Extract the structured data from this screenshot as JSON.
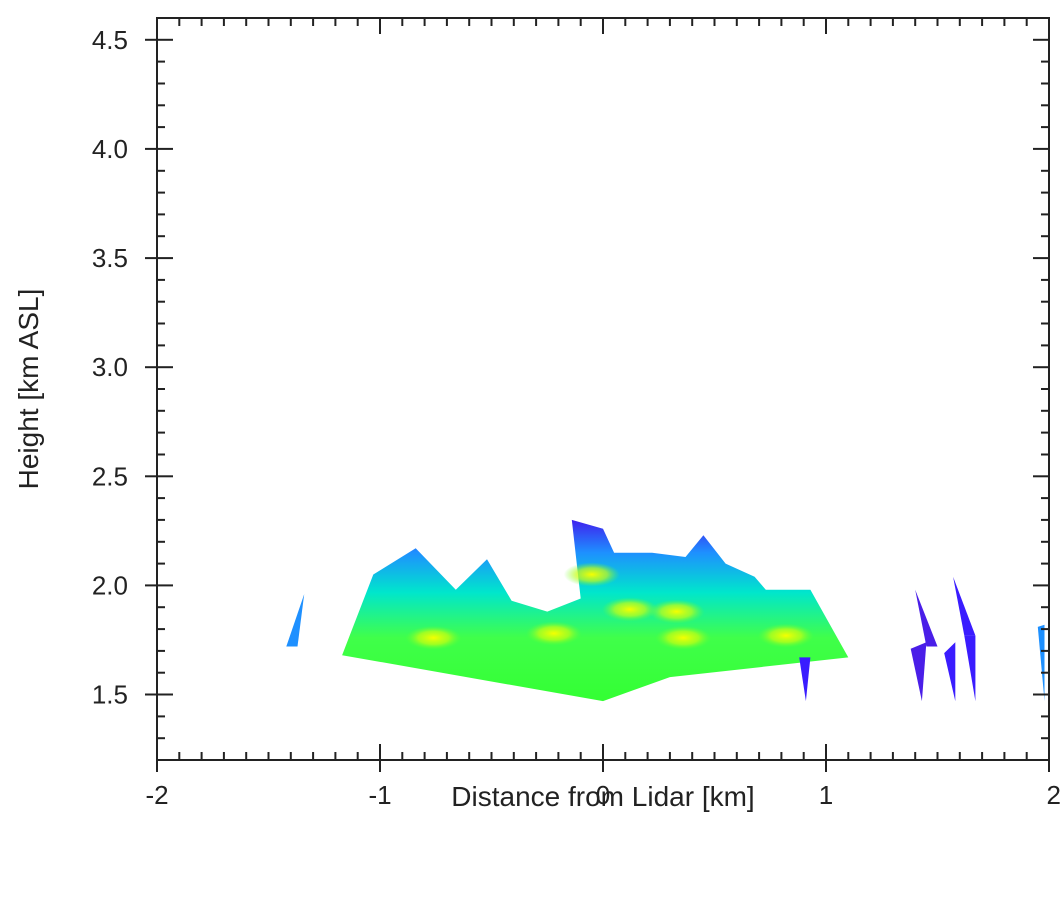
{
  "chart_data": {
    "type": "heatmap",
    "title": "",
    "xlabel": "Distance from Lidar [km]",
    "ylabel": "Height [km ASL]",
    "xlim": [
      -2,
      2
    ],
    "ylim": [
      1.2,
      4.6
    ],
    "x_ticks": [
      -2,
      -1,
      0,
      1,
      2
    ],
    "x_tick_labels": [
      "-2",
      "-1",
      "0",
      "1",
      "2"
    ],
    "y_ticks": [
      1.5,
      2.0,
      2.5,
      3.0,
      3.5,
      4.0,
      4.5
    ],
    "y_tick_labels": [
      "1.5",
      "2.0",
      "2.5",
      "3.0",
      "3.5",
      "4.0",
      "4.5"
    ],
    "grid": false,
    "legend": "none",
    "colormap": [
      "#2b00ff",
      "#0078ff",
      "#00e6ff",
      "#00ff80",
      "#33ff00",
      "#e6ff00"
    ],
    "scan_regions": [
      {
        "name": "main-sector",
        "color": "#33ff33",
        "points": [
          [
            0.0,
            1.47
          ],
          [
            -1.17,
            1.68
          ],
          [
            -1.03,
            2.05
          ],
          [
            -0.84,
            2.17
          ],
          [
            -0.66,
            1.98
          ],
          [
            -0.52,
            2.12
          ],
          [
            -0.41,
            1.93
          ],
          [
            -0.25,
            1.88
          ],
          [
            -0.1,
            1.94
          ],
          [
            -0.14,
            2.3
          ],
          [
            0.0,
            2.26
          ],
          [
            0.05,
            2.15
          ],
          [
            0.22,
            2.15
          ],
          [
            0.37,
            2.13
          ],
          [
            0.45,
            2.23
          ],
          [
            0.55,
            2.1
          ],
          [
            0.68,
            2.04
          ],
          [
            0.73,
            1.98
          ],
          [
            0.93,
            1.98
          ],
          [
            1.1,
            1.67
          ],
          [
            0.3,
            1.58
          ]
        ]
      },
      {
        "name": "left-outer-gate",
        "color": "#1e90ff",
        "points": [
          [
            -1.42,
            1.72
          ],
          [
            -1.34,
            1.96
          ],
          [
            -1.37,
            1.72
          ]
        ]
      },
      {
        "name": "right-outer-gate-1",
        "color": "#3a1cff",
        "points": [
          [
            0.88,
            1.67
          ],
          [
            0.93,
            1.67
          ],
          [
            0.91,
            1.47
          ]
        ]
      },
      {
        "name": "right-outer-gate-2",
        "color": "#4a1ee8",
        "points": [
          [
            1.4,
            1.98
          ],
          [
            1.45,
            1.72
          ],
          [
            1.5,
            1.72
          ]
        ]
      },
      {
        "name": "right-outer-gate-3",
        "color": "#4a1ee8",
        "points": [
          [
            1.38,
            1.71
          ],
          [
            1.43,
            1.47
          ],
          [
            1.45,
            1.74
          ]
        ]
      },
      {
        "name": "right-outer-gate-4",
        "color": "#3a1cff",
        "points": [
          [
            1.57,
            2.04
          ],
          [
            1.67,
            1.77
          ],
          [
            1.62,
            1.77
          ]
        ]
      },
      {
        "name": "right-outer-gate-5",
        "color": "#3a1cff",
        "points": [
          [
            1.53,
            1.69
          ],
          [
            1.58,
            1.47
          ],
          [
            1.58,
            1.74
          ]
        ]
      },
      {
        "name": "right-outer-gate-6",
        "color": "#3a1cff",
        "points": [
          [
            1.62,
            1.77
          ],
          [
            1.67,
            1.47
          ],
          [
            1.67,
            1.77
          ]
        ]
      },
      {
        "name": "edge-gate",
        "color": "#1e90ff",
        "points": [
          [
            1.95,
            1.81
          ],
          [
            1.98,
            1.47
          ],
          [
            1.98,
            1.82
          ]
        ]
      }
    ],
    "highlights": [
      {
        "x": -0.22,
        "y": 1.78,
        "color": "#f5ff00"
      },
      {
        "x": 0.12,
        "y": 1.89,
        "color": "#ddff10"
      },
      {
        "x": 0.36,
        "y": 1.76,
        "color": "#ddff10"
      },
      {
        "x": 0.33,
        "y": 1.88,
        "color": "#bfff1a"
      },
      {
        "x": -0.76,
        "y": 1.76,
        "color": "#b3ff2a"
      },
      {
        "x": 0.82,
        "y": 1.77,
        "color": "#b3ff2a"
      },
      {
        "x": -0.05,
        "y": 2.05,
        "color": "#8cff3a"
      }
    ]
  }
}
